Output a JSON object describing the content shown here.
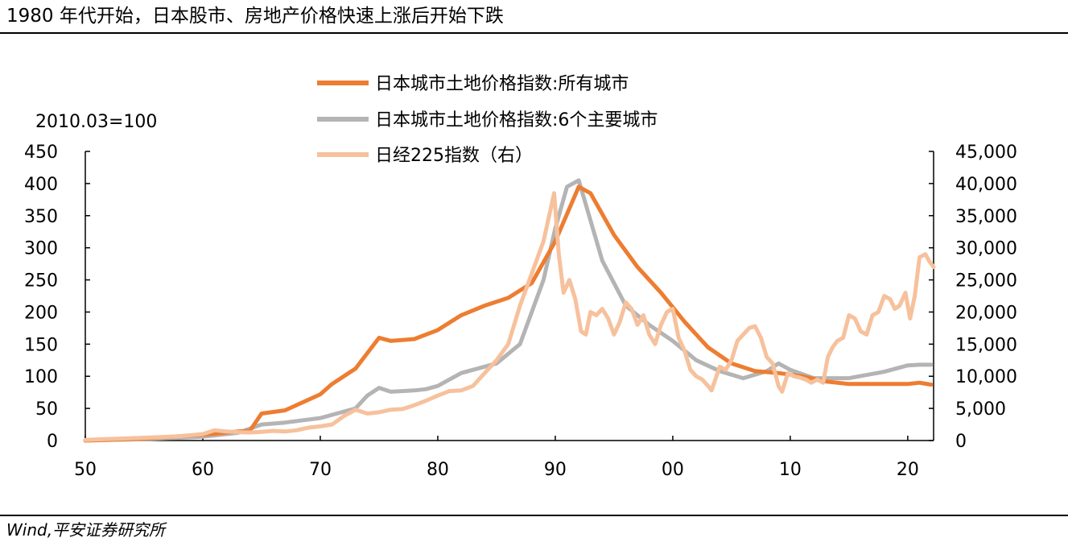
{
  "header": {
    "title": "1980 年代开始，日本股市、房地产价格快速上涨后开始下跌"
  },
  "footer": {
    "source": "Wind,平安证券研究所"
  },
  "colors": {
    "all_cities": "#ED7D31",
    "six_cities": "#B4B4B4",
    "nikkei": "#F6C19C"
  },
  "chart_data": {
    "type": "line",
    "title": "",
    "ylabel_left": "2010.03=100",
    "ylim_left": [
      0,
      450
    ],
    "yticks_left": [
      "0",
      "50",
      "100",
      "150",
      "200",
      "250",
      "300",
      "350",
      "400",
      "450"
    ],
    "ylim_right": [
      0,
      45000
    ],
    "yticks_right": [
      "0",
      "5,000",
      "10,000",
      "15,000",
      "20,000",
      "25,000",
      "30,000",
      "35,000",
      "40,000",
      "45,000"
    ],
    "xlim": [
      1950,
      2022.2
    ],
    "xticks": [
      {
        "value": 1950,
        "label": "50"
      },
      {
        "value": 1960,
        "label": "60"
      },
      {
        "value": 1970,
        "label": "70"
      },
      {
        "value": 1980,
        "label": "80"
      },
      {
        "value": 1990,
        "label": "90"
      },
      {
        "value": 2000,
        "label": "00"
      },
      {
        "value": 2010,
        "label": "10"
      },
      {
        "value": 2020,
        "label": "20"
      }
    ],
    "legend_position": "top-center",
    "series": [
      {
        "name": "日本城市土地价格指数:所有城市",
        "axis": "left",
        "x": [
          1950,
          1955,
          1960,
          1963,
          1964,
          1965,
          1967,
          1970,
          1971,
          1973,
          1975,
          1976,
          1978,
          1980,
          1982,
          1984,
          1986,
          1988,
          1990,
          1992,
          1993,
          1995,
          1997,
          1999,
          2001,
          2003,
          2005,
          2007,
          2009,
          2011,
          2013,
          2015,
          2017,
          2019,
          2020,
          2021,
          2022
        ],
        "values": [
          0,
          3,
          9,
          14,
          15,
          42,
          47,
          72,
          88,
          112,
          160,
          155,
          158,
          172,
          195,
          210,
          222,
          245,
          310,
          395,
          385,
          320,
          270,
          230,
          185,
          145,
          120,
          108,
          105,
          100,
          92,
          88,
          88,
          88,
          88,
          90,
          87
        ]
      },
      {
        "name": "日本城市土地价格指数:6个主要城市",
        "axis": "left",
        "x": [
          1950,
          1955,
          1960,
          1963,
          1965,
          1967,
          1970,
          1973,
          1974,
          1975,
          1976,
          1978,
          1979,
          1980,
          1982,
          1985,
          1987,
          1989,
          1990,
          1991,
          1992,
          1994,
          1996,
          1998,
          2000,
          2002,
          2004,
          2006,
          2008,
          2009,
          2010,
          2012,
          2015,
          2018,
          2020,
          2021,
          2022
        ],
        "values": [
          0,
          2,
          6,
          12,
          25,
          28,
          35,
          50,
          70,
          82,
          76,
          78,
          80,
          85,
          105,
          120,
          150,
          250,
          330,
          395,
          405,
          280,
          210,
          180,
          155,
          125,
          108,
          97,
          108,
          120,
          110,
          97,
          97,
          107,
          117,
          118,
          118
        ]
      },
      {
        "name": "日经225指数（右）",
        "axis": "right",
        "x": [
          1950,
          1953,
          1956,
          1958,
          1960,
          1961,
          1962,
          1963,
          1964,
          1965,
          1966,
          1967,
          1968,
          1969,
          1970,
          1971,
          1972,
          1973,
          1974,
          1975,
          1976,
          1977,
          1978,
          1979,
          1980,
          1981,
          1982,
          1983,
          1984,
          1985,
          1986,
          1987,
          1988,
          1989,
          1989.9,
          1990.3,
          1990.7,
          1991.2,
          1991.7,
          1992.2,
          1992.6,
          1993,
          1993.5,
          1994,
          1994.5,
          1995,
          1995.5,
          1996,
          1996.5,
          1997,
          1997.5,
          1998,
          1998.5,
          1999,
          1999.5,
          2000,
          2000.5,
          2001,
          2001.5,
          2002,
          2002.5,
          2003,
          2003.3,
          2004,
          2004.5,
          2005,
          2005.5,
          2006,
          2006.5,
          2007,
          2007.5,
          2008,
          2008.5,
          2009,
          2009.3,
          2009.8,
          2010.3,
          2010.8,
          2011.3,
          2011.8,
          2012.3,
          2012.8,
          2013.2,
          2013.6,
          2014,
          2014.5,
          2015,
          2015.5,
          2016,
          2016.5,
          2017,
          2017.5,
          2018,
          2018.5,
          2018.9,
          2019.3,
          2019.8,
          2020.2,
          2020.6,
          2021,
          2021.5,
          2021.8,
          2022.2
        ],
        "values": [
          100,
          300,
          500,
          650,
          1000,
          1600,
          1400,
          1300,
          1250,
          1350,
          1500,
          1400,
          1600,
          2000,
          2200,
          2500,
          3800,
          4800,
          4200,
          4400,
          4800,
          4900,
          5500,
          6200,
          7000,
          7700,
          7800,
          8500,
          10500,
          12500,
          15000,
          21000,
          26000,
          31000,
          38500,
          29000,
          23000,
          25000,
          22000,
          17000,
          16500,
          20000,
          19500,
          20500,
          19000,
          16500,
          18500,
          21500,
          20500,
          18000,
          19500,
          16500,
          15000,
          18000,
          20000,
          20500,
          16000,
          14000,
          11000,
          10000,
          9500,
          8500,
          7800,
          11500,
          11000,
          12500,
          15500,
          16500,
          17500,
          17800,
          16000,
          13000,
          12000,
          8500,
          7600,
          10500,
          10000,
          9800,
          9500,
          9000,
          9500,
          9000,
          13000,
          14500,
          15500,
          16000,
          19500,
          19000,
          17000,
          16500,
          19500,
          20000,
          22500,
          22000,
          20500,
          21000,
          23000,
          19000,
          22500,
          28500,
          29000,
          28000,
          27000
        ]
      }
    ]
  }
}
